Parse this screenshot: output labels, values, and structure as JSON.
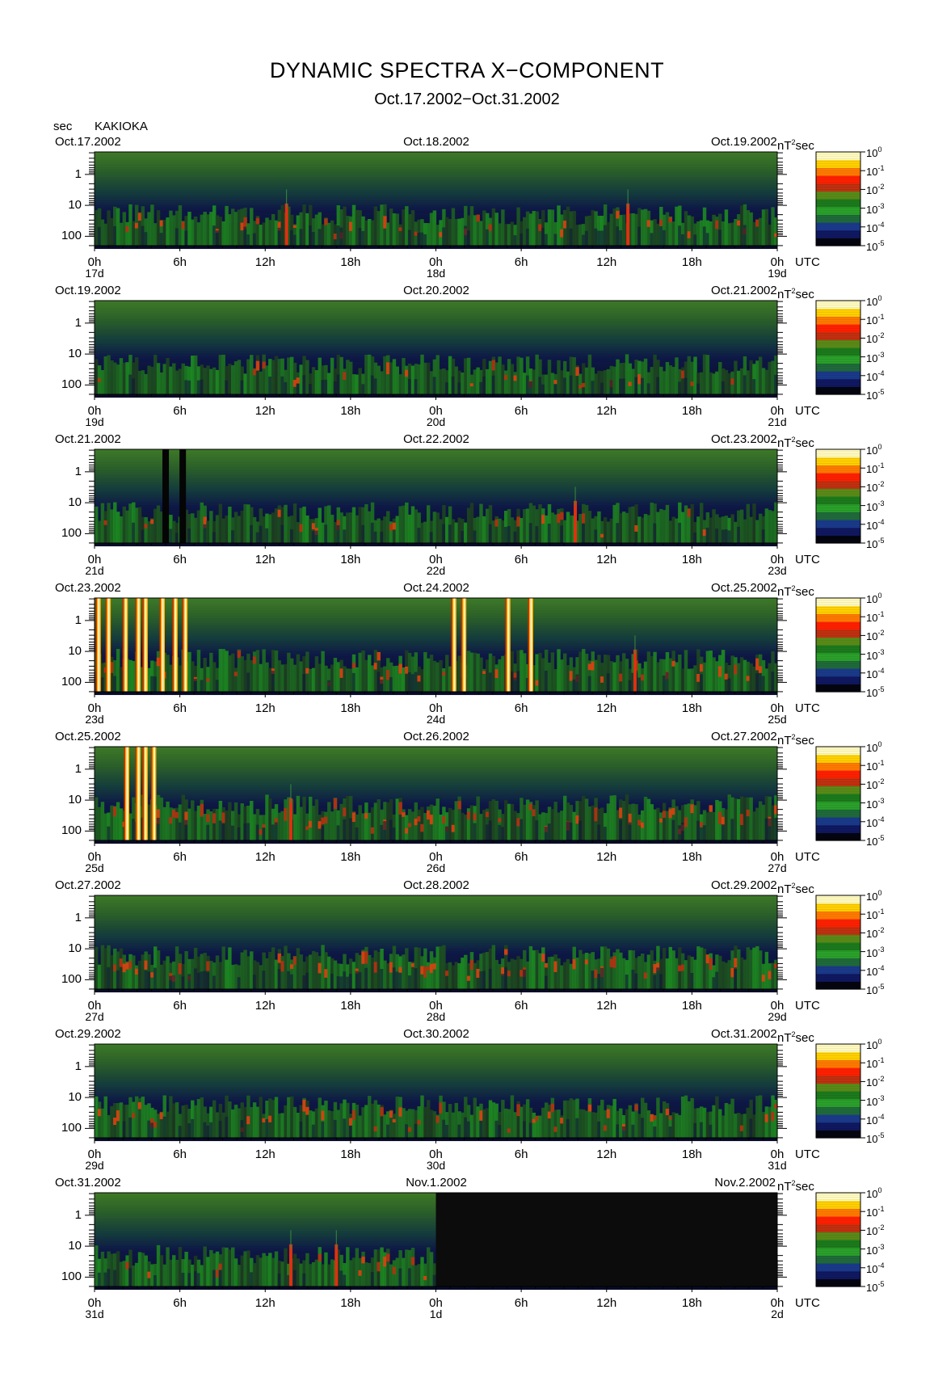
{
  "figure": {
    "title": "DYNAMIC SPECTRA X−COMPONENT",
    "subtitle": "Oct.17.2002−Oct.31.2002",
    "y_unit": "sec",
    "station": "KAKIOKA"
  },
  "chart_data": {
    "type": "heatmap",
    "title": "DYNAMIC SPECTRA X−COMPONENT",
    "subtitle": "Oct.17.2002−Oct.31.2002",
    "ylabel": "sec",
    "xlabel": "UTC",
    "y_scale": "log",
    "y_ticks": [
      "1",
      "10",
      "100"
    ],
    "x_ticks": [
      "0h",
      "6h",
      "12h",
      "18h",
      "0h",
      "6h",
      "12h",
      "18h",
      "0h"
    ],
    "x_label_suffix": "UTC",
    "color_unit": "nT²sec",
    "colorbar": {
      "scale": "log",
      "ticks": [
        "10⁰",
        "10⁻¹",
        "10⁻²",
        "10⁻³",
        "10⁻⁴",
        "10⁻⁵"
      ],
      "range": [
        1e-05,
        1
      ],
      "colors": [
        "#050510",
        "#101860",
        "#1a3a8a",
        "#1f6a3a",
        "#2aa02a",
        "#1c7a1c",
        "#5a8a18",
        "#c03010",
        "#ff2000",
        "#ff7a00",
        "#ffd000",
        "#fffbc0"
      ]
    },
    "panels": [
      {
        "start_label": "Oct.17.2002",
        "mid_label": "Oct.18.2002",
        "end_label": "Oct.19.2002",
        "days": [
          "17d",
          "18d",
          "19d"
        ],
        "activity": 0.35,
        "events": [
          {
            "hour": 13.5,
            "type": "red"
          },
          {
            "hour": 37.5,
            "type": "red"
          }
        ],
        "missing": []
      },
      {
        "start_label": "Oct.19.2002",
        "mid_label": "Oct.20.2002",
        "end_label": "Oct.21.2002",
        "days": [
          "19d",
          "20d",
          "21d"
        ],
        "activity": 0.25,
        "events": [],
        "missing": []
      },
      {
        "start_label": "Oct.21.2002",
        "mid_label": "Oct.22.2002",
        "end_label": "Oct.23.2002",
        "days": [
          "21d",
          "22d",
          "23d"
        ],
        "activity": 0.3,
        "events": [
          {
            "hour": 5.0,
            "type": "dark"
          },
          {
            "hour": 6.2,
            "type": "dark"
          },
          {
            "hour": 33.8,
            "type": "red"
          }
        ],
        "missing": []
      },
      {
        "start_label": "Oct.23.2002",
        "mid_label": "Oct.24.2002",
        "end_label": "Oct.25.2002",
        "days": [
          "23d",
          "24d",
          "25d"
        ],
        "activity": 0.5,
        "events": [
          {
            "hour": 0.3,
            "type": "bright"
          },
          {
            "hour": 1.0,
            "type": "bright"
          },
          {
            "hour": 2.2,
            "type": "bright"
          },
          {
            "hour": 3.1,
            "type": "bright"
          },
          {
            "hour": 3.6,
            "type": "bright"
          },
          {
            "hour": 4.8,
            "type": "bright"
          },
          {
            "hour": 5.7,
            "type": "bright"
          },
          {
            "hour": 6.4,
            "type": "bright"
          },
          {
            "hour": 25.3,
            "type": "bright"
          },
          {
            "hour": 26.0,
            "type": "bright"
          },
          {
            "hour": 29.1,
            "type": "bright"
          },
          {
            "hour": 30.7,
            "type": "bright"
          },
          {
            "hour": 38.0,
            "type": "red"
          }
        ],
        "missing": []
      },
      {
        "start_label": "Oct.25.2002",
        "mid_label": "Oct.26.2002",
        "end_label": "Oct.27.2002",
        "days": [
          "25d",
          "26d",
          "27d"
        ],
        "activity": 0.75,
        "events": [
          {
            "hour": 2.3,
            "type": "bright"
          },
          {
            "hour": 3.1,
            "type": "bright"
          },
          {
            "hour": 3.6,
            "type": "bright"
          },
          {
            "hour": 4.2,
            "type": "bright"
          },
          {
            "hour": 13.8,
            "type": "red"
          }
        ],
        "missing": []
      },
      {
        "start_label": "Oct.27.2002",
        "mid_label": "Oct.28.2002",
        "end_label": "Oct.29.2002",
        "days": [
          "27d",
          "28d",
          "29d"
        ],
        "activity": 0.6,
        "events": [],
        "missing": []
      },
      {
        "start_label": "Oct.29.2002",
        "mid_label": "Oct.30.2002",
        "end_label": "Oct.31.2002",
        "days": [
          "29d",
          "30d",
          "31d"
        ],
        "activity": 0.45,
        "events": [],
        "missing": []
      },
      {
        "start_label": "Oct.31.2002",
        "mid_label": "Nov.1.2002",
        "end_label": "Nov.2.2002",
        "days": [
          "31d",
          "1d",
          "2d"
        ],
        "activity": 0.35,
        "events": [
          {
            "hour": 13.8,
            "type": "red"
          },
          {
            "hour": 17.0,
            "type": "red"
          }
        ],
        "missing": [
          [
            24,
            48
          ]
        ]
      }
    ]
  }
}
